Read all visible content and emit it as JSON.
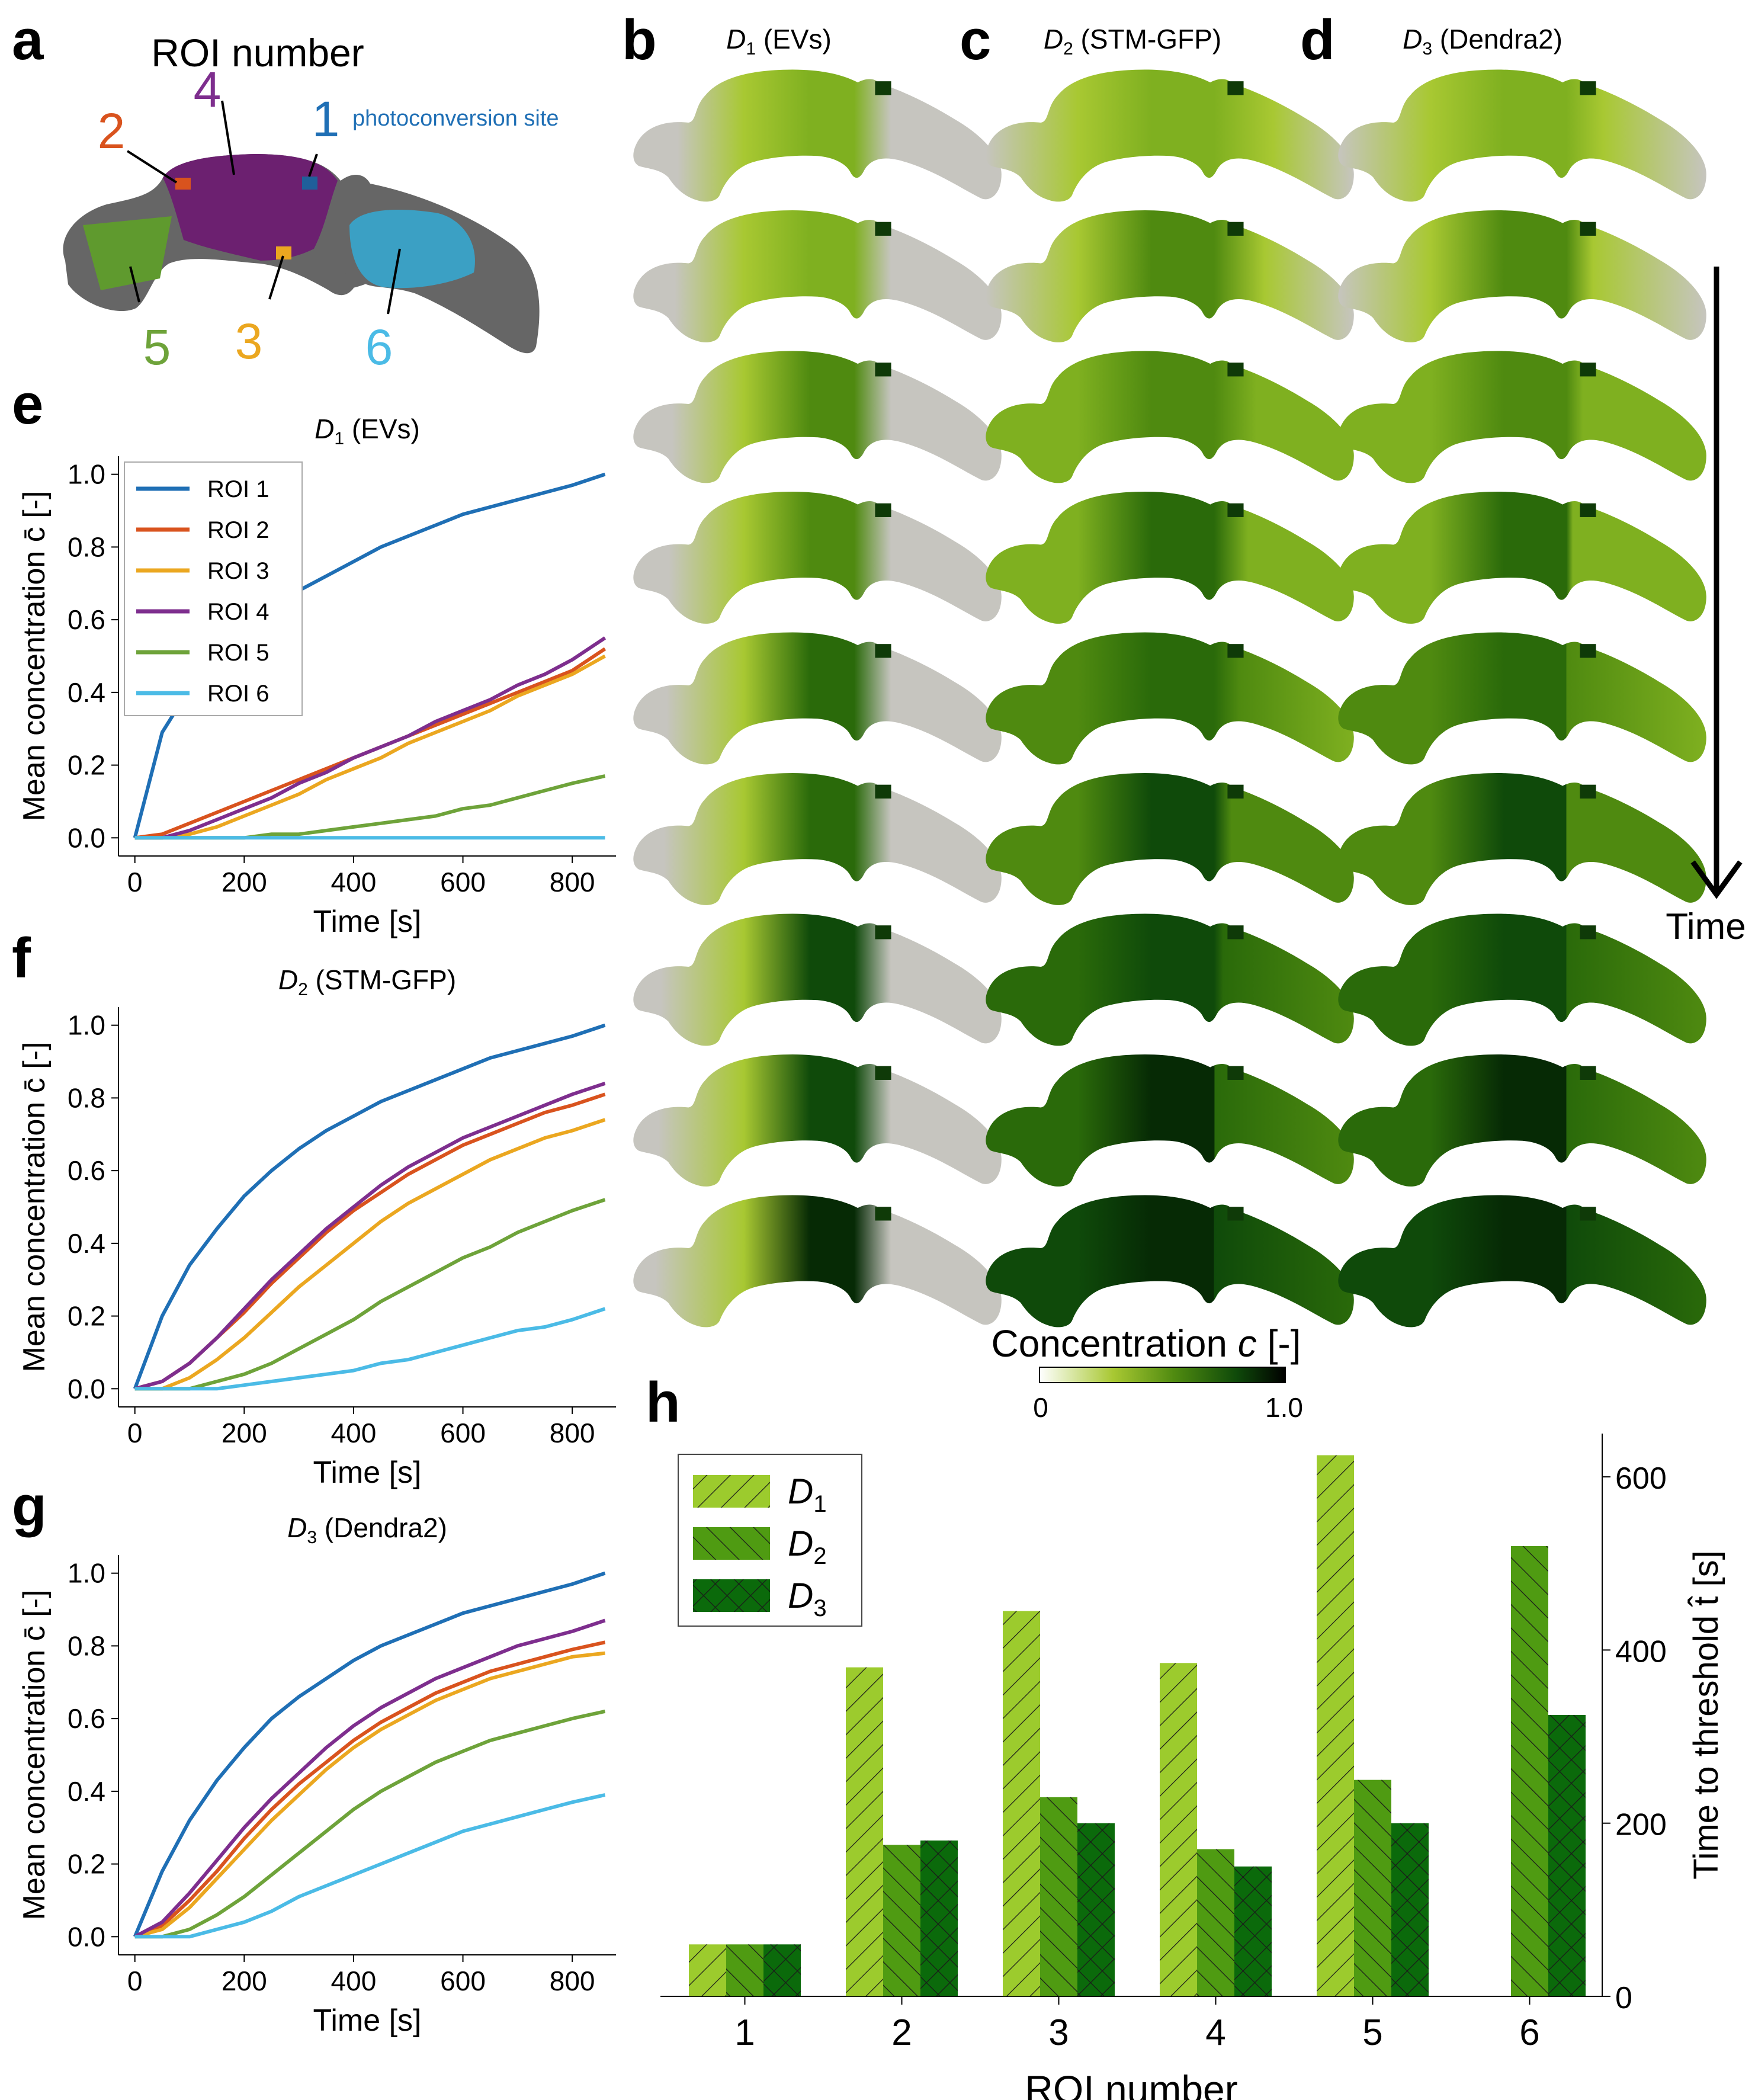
{
  "panels": {
    "a": "a",
    "b": "b",
    "c": "c",
    "d": "d",
    "e": "e",
    "f": "f",
    "g": "g",
    "h": "h"
  },
  "roi_map": {
    "title": "ROI number",
    "photoconversion_label": "photoconversion site",
    "labels": [
      {
        "text": "1",
        "color": "#1f6fb5"
      },
      {
        "text": "2",
        "color": "#d9531e"
      },
      {
        "text": "3",
        "color": "#eba720"
      },
      {
        "text": "4",
        "color": "#7e2e8e"
      },
      {
        "text": "5",
        "color": "#6ea33a"
      },
      {
        "text": "6",
        "color": "#4bbbe6"
      }
    ],
    "roi_colors": {
      "roi1": "#1f5f9a",
      "roi2": "#d9531e",
      "roi3": "#eba720",
      "roi4": "#6c2070",
      "roi5": "#5f9a2e",
      "roi6": "#3ba0c4"
    }
  },
  "snapshots": {
    "columns": [
      {
        "sym": "D",
        "sub": "1",
        "rest": " (EVs)"
      },
      {
        "sym": "D",
        "sub": "2",
        "rest": " (STM-GFP)"
      },
      {
        "sym": "D",
        "sub": "3",
        "rest": " (Dendra2)"
      }
    ],
    "rows": 9,
    "time_label": "Time"
  },
  "colorbar": {
    "label": "Concentration c [-]",
    "label_plain": "Concentration ",
    "label_var": "c",
    "label_unit": " [-]",
    "min_label": "0",
    "max_label": "1.0",
    "colors": [
      "#ffffff",
      "#a8c832",
      "#4f8a10",
      "#0f4a0a",
      "#000000"
    ]
  },
  "chart_data": [
    {
      "type": "line",
      "title": "D1 (EVs)",
      "title_sym": "D",
      "title_sub": "1",
      "title_rest": " (EVs)",
      "xlabel": "Time [s]",
      "ylabel": "Mean concentration c̄ [-]",
      "xlim": [
        -30,
        880
      ],
      "ylim": [
        -0.05,
        1.05
      ],
      "xticks": [
        0,
        200,
        400,
        600,
        800
      ],
      "yticks": [
        0.0,
        0.2,
        0.4,
        0.6,
        0.8,
        1.0
      ],
      "legend": "top-left",
      "x": [
        0,
        50,
        100,
        150,
        200,
        250,
        300,
        350,
        400,
        450,
        500,
        550,
        600,
        650,
        700,
        750,
        800,
        860
      ],
      "series": [
        {
          "name": "ROI 1",
          "color": "#1f6fb5",
          "values": [
            0.0,
            0.29,
            0.41,
            0.5,
            0.57,
            0.63,
            0.68,
            0.72,
            0.76,
            0.8,
            0.83,
            0.86,
            0.89,
            0.91,
            0.93,
            0.95,
            0.97,
            1.0
          ]
        },
        {
          "name": "ROI 2",
          "color": "#d9531e",
          "values": [
            0.0,
            0.01,
            0.04,
            0.07,
            0.1,
            0.13,
            0.16,
            0.19,
            0.22,
            0.25,
            0.28,
            0.31,
            0.34,
            0.37,
            0.4,
            0.43,
            0.46,
            0.52
          ]
        },
        {
          "name": "ROI 3",
          "color": "#eba720",
          "values": [
            0.0,
            0.0,
            0.01,
            0.03,
            0.06,
            0.09,
            0.12,
            0.16,
            0.19,
            0.22,
            0.26,
            0.29,
            0.32,
            0.35,
            0.39,
            0.42,
            0.45,
            0.5
          ]
        },
        {
          "name": "ROI 4",
          "color": "#7e2e8e",
          "values": [
            0.0,
            0.0,
            0.02,
            0.05,
            0.08,
            0.11,
            0.15,
            0.18,
            0.22,
            0.25,
            0.28,
            0.32,
            0.35,
            0.38,
            0.42,
            0.45,
            0.49,
            0.55
          ]
        },
        {
          "name": "ROI 5",
          "color": "#6ea33a",
          "values": [
            0.0,
            0.0,
            0.0,
            0.0,
            0.0,
            0.01,
            0.01,
            0.02,
            0.03,
            0.04,
            0.05,
            0.06,
            0.08,
            0.09,
            0.11,
            0.13,
            0.15,
            0.17
          ]
        },
        {
          "name": "ROI 6",
          "color": "#4bbbe6",
          "values": [
            0.0,
            0.0,
            0.0,
            0.0,
            0.0,
            0.0,
            0.0,
            0.0,
            0.0,
            0.0,
            0.0,
            0.0,
            0.0,
            0.0,
            0.0,
            0.0,
            0.0,
            0.0
          ]
        }
      ]
    },
    {
      "type": "line",
      "title": "D2 (STM-GFP)",
      "title_sym": "D",
      "title_sub": "2",
      "title_rest": " (STM-GFP)",
      "xlabel": "Time [s]",
      "ylabel": "Mean concentration c̄ [-]",
      "xlim": [
        -30,
        880
      ],
      "ylim": [
        -0.05,
        1.05
      ],
      "xticks": [
        0,
        200,
        400,
        600,
        800
      ],
      "yticks": [
        0.0,
        0.2,
        0.4,
        0.6,
        0.8,
        1.0
      ],
      "legend": "",
      "x": [
        0,
        50,
        100,
        150,
        200,
        250,
        300,
        350,
        400,
        450,
        500,
        550,
        600,
        650,
        700,
        750,
        800,
        860
      ],
      "series": [
        {
          "name": "ROI 1",
          "color": "#1f6fb5",
          "values": [
            0.0,
            0.2,
            0.34,
            0.44,
            0.53,
            0.6,
            0.66,
            0.71,
            0.75,
            0.79,
            0.82,
            0.85,
            0.88,
            0.91,
            0.93,
            0.95,
            0.97,
            1.0
          ]
        },
        {
          "name": "ROI 2",
          "color": "#d9531e",
          "values": [
            0.0,
            0.02,
            0.07,
            0.14,
            0.21,
            0.29,
            0.36,
            0.43,
            0.49,
            0.54,
            0.59,
            0.63,
            0.67,
            0.7,
            0.73,
            0.76,
            0.78,
            0.81
          ]
        },
        {
          "name": "ROI 3",
          "color": "#eba720",
          "values": [
            0.0,
            0.0,
            0.03,
            0.08,
            0.14,
            0.21,
            0.28,
            0.34,
            0.4,
            0.46,
            0.51,
            0.55,
            0.59,
            0.63,
            0.66,
            0.69,
            0.71,
            0.74
          ]
        },
        {
          "name": "ROI 4",
          "color": "#7e2e8e",
          "values": [
            0.0,
            0.02,
            0.07,
            0.14,
            0.22,
            0.3,
            0.37,
            0.44,
            0.5,
            0.56,
            0.61,
            0.65,
            0.69,
            0.72,
            0.75,
            0.78,
            0.81,
            0.84
          ]
        },
        {
          "name": "ROI 5",
          "color": "#6ea33a",
          "values": [
            0.0,
            0.0,
            0.0,
            0.02,
            0.04,
            0.07,
            0.11,
            0.15,
            0.19,
            0.24,
            0.28,
            0.32,
            0.36,
            0.39,
            0.43,
            0.46,
            0.49,
            0.52
          ]
        },
        {
          "name": "ROI 6",
          "color": "#4bbbe6",
          "values": [
            0.0,
            0.0,
            0.0,
            0.0,
            0.01,
            0.02,
            0.03,
            0.04,
            0.05,
            0.07,
            0.08,
            0.1,
            0.12,
            0.14,
            0.16,
            0.17,
            0.19,
            0.22
          ]
        }
      ]
    },
    {
      "type": "line",
      "title": "D3 (Dendra2)",
      "title_sym": "D",
      "title_sub": "3",
      "title_rest": " (Dendra2)",
      "xlabel": "Time [s]",
      "ylabel": "Mean concentration c̄ [-]",
      "xlim": [
        -30,
        880
      ],
      "ylim": [
        -0.05,
        1.05
      ],
      "xticks": [
        0,
        200,
        400,
        600,
        800
      ],
      "yticks": [
        0.0,
        0.2,
        0.4,
        0.6,
        0.8,
        1.0
      ],
      "legend": "",
      "x": [
        0,
        50,
        100,
        150,
        200,
        250,
        300,
        350,
        400,
        450,
        500,
        550,
        600,
        650,
        700,
        750,
        800,
        860
      ],
      "series": [
        {
          "name": "ROI 1",
          "color": "#1f6fb5",
          "values": [
            0.0,
            0.18,
            0.32,
            0.43,
            0.52,
            0.6,
            0.66,
            0.71,
            0.76,
            0.8,
            0.83,
            0.86,
            0.89,
            0.91,
            0.93,
            0.95,
            0.97,
            1.0
          ]
        },
        {
          "name": "ROI 2",
          "color": "#d9531e",
          "values": [
            0.0,
            0.03,
            0.1,
            0.18,
            0.27,
            0.35,
            0.42,
            0.48,
            0.54,
            0.59,
            0.63,
            0.67,
            0.7,
            0.73,
            0.75,
            0.77,
            0.79,
            0.81
          ]
        },
        {
          "name": "ROI 3",
          "color": "#eba720",
          "values": [
            0.0,
            0.02,
            0.08,
            0.16,
            0.24,
            0.32,
            0.39,
            0.46,
            0.52,
            0.57,
            0.61,
            0.65,
            0.68,
            0.71,
            0.73,
            0.75,
            0.77,
            0.78
          ]
        },
        {
          "name": "ROI 4",
          "color": "#7e2e8e",
          "values": [
            0.0,
            0.04,
            0.12,
            0.21,
            0.3,
            0.38,
            0.45,
            0.52,
            0.58,
            0.63,
            0.67,
            0.71,
            0.74,
            0.77,
            0.8,
            0.82,
            0.84,
            0.87
          ]
        },
        {
          "name": "ROI 5",
          "color": "#6ea33a",
          "values": [
            0.0,
            0.0,
            0.02,
            0.06,
            0.11,
            0.17,
            0.23,
            0.29,
            0.35,
            0.4,
            0.44,
            0.48,
            0.51,
            0.54,
            0.56,
            0.58,
            0.6,
            0.62
          ]
        },
        {
          "name": "ROI 6",
          "color": "#4bbbe6",
          "values": [
            0.0,
            0.0,
            0.0,
            0.02,
            0.04,
            0.07,
            0.11,
            0.14,
            0.17,
            0.2,
            0.23,
            0.26,
            0.29,
            0.31,
            0.33,
            0.35,
            0.37,
            0.39
          ]
        }
      ]
    },
    {
      "type": "bar",
      "title": "",
      "xlabel": "ROI number",
      "ylabel": "Time to threshold t̂ [s]",
      "ylim": [
        0,
        650
      ],
      "yticks": [
        0,
        200,
        400,
        600
      ],
      "legend": "top-left",
      "categories": [
        "1",
        "2",
        "3",
        "4",
        "5",
        "6"
      ],
      "series": [
        {
          "name": "D1",
          "sym": "D",
          "sub": "1",
          "color": "#9ccb2d",
          "hatch": "/",
          "values": [
            60,
            380,
            445,
            385,
            625,
            null
          ]
        },
        {
          "name": "D2",
          "sym": "D",
          "sub": "2",
          "color": "#4f9b12",
          "hatch": "\\",
          "values": [
            60,
            175,
            230,
            170,
            250,
            520
          ]
        },
        {
          "name": "D3",
          "sym": "D",
          "sub": "3",
          "color": "#0b6a0b",
          "hatch": "x",
          "values": [
            60,
            180,
            200,
            150,
            200,
            325
          ]
        }
      ]
    }
  ]
}
